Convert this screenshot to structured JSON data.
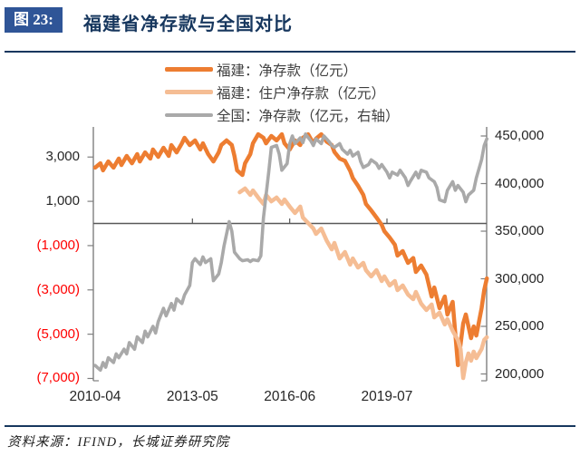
{
  "header": {
    "figure_label": "图 23:",
    "title": "福建省净存款与全国对比"
  },
  "legend": {
    "items": [
      {
        "label": "福建：净存款（亿元）"
      },
      {
        "label": "福建：住户净存款（亿元）"
      },
      {
        "label": "全国：净存款（亿元，右轴）"
      }
    ]
  },
  "source": {
    "text": "资料来源：IFIND，长城证券研究院"
  },
  "colors": {
    "navy": "#17375E",
    "figure_box_blue": "#2F5597",
    "fujian_net_orange": "#ED7D31",
    "fujian_household_peach": "#F5BD94",
    "national_gray": "#A9A9A9",
    "negative_label_red": "#FF0000",
    "tick_label": "#262626",
    "axis_line": "#7F7F7F",
    "zero_line": "#595959"
  },
  "chart_data": {
    "type": "line",
    "title": "福建省净存款与全国对比",
    "x_axis": {
      "unit": "months since 2010-04",
      "range": [
        0,
        149
      ],
      "ticks": [
        {
          "m": 0,
          "label": "2010-04"
        },
        {
          "m": 37,
          "label": "2013-05"
        },
        {
          "m": 74,
          "label": "2016-06"
        },
        {
          "m": 111,
          "label": "2019-07"
        }
      ]
    },
    "y_left": {
      "title": "福建净存款（亿元）",
      "range": [
        -7800,
        4400
      ],
      "ticks": [
        {
          "v": 3000,
          "label": "3,000",
          "color": "#262626"
        },
        {
          "v": 1000,
          "label": "1,000",
          "color": "#262626"
        },
        {
          "v": -1000,
          "label": "(1,000)",
          "color": "#FF0000"
        },
        {
          "v": -3000,
          "label": "(3,000)",
          "color": "#FF0000"
        },
        {
          "v": -5000,
          "label": "(5,000)",
          "color": "#FF0000"
        },
        {
          "v": -7000,
          "label": "(7,000)",
          "color": "#FF0000"
        }
      ]
    },
    "y_right": {
      "title": "全国净存款（亿元，右轴）",
      "range": [
        196000,
        455000
      ],
      "ticks": [
        {
          "v": 450000,
          "label": "450,000",
          "color": "#262626"
        },
        {
          "v": 400000,
          "label": "400,000",
          "color": "#262626"
        },
        {
          "v": 350000,
          "label": "350,000",
          "color": "#262626"
        },
        {
          "v": 300000,
          "label": "300,000",
          "color": "#262626"
        },
        {
          "v": 250000,
          "label": "250,000",
          "color": "#262626"
        },
        {
          "v": 200000,
          "label": "200,000",
          "color": "#262626"
        }
      ]
    },
    "series": [
      {
        "id": "fujian-net",
        "name": "福建：净存款（亿元）",
        "axis": "left",
        "color": "#ED7D31",
        "points": [
          [
            0,
            2520
          ],
          [
            2,
            2720
          ],
          [
            3,
            2400
          ],
          [
            5,
            2800
          ],
          [
            7,
            2520
          ],
          [
            9,
            2930
          ],
          [
            10,
            2640
          ],
          [
            12,
            3050
          ],
          [
            14,
            2720
          ],
          [
            16,
            3130
          ],
          [
            17,
            2800
          ],
          [
            19,
            3210
          ],
          [
            21,
            2930
          ],
          [
            22,
            3340
          ],
          [
            24,
            3010
          ],
          [
            26,
            3420
          ],
          [
            28,
            3050
          ],
          [
            29,
            3540
          ],
          [
            31,
            3210
          ],
          [
            33,
            3620
          ],
          [
            34,
            3870
          ],
          [
            36,
            3540
          ],
          [
            38,
            3750
          ],
          [
            40,
            3340
          ],
          [
            41,
            3620
          ],
          [
            43,
            3130
          ],
          [
            45,
            2800
          ],
          [
            47,
            3210
          ],
          [
            48,
            3540
          ],
          [
            50,
            3750
          ],
          [
            52,
            3540
          ],
          [
            53,
            3050
          ],
          [
            54,
            2400
          ],
          [
            56,
            2190
          ],
          [
            57,
            2720
          ],
          [
            59,
            3130
          ],
          [
            60,
            3620
          ],
          [
            62,
            4030
          ],
          [
            64,
            3870
          ],
          [
            65,
            3620
          ],
          [
            67,
            3950
          ],
          [
            69,
            3750
          ],
          [
            71,
            4030
          ],
          [
            72,
            3620
          ],
          [
            74,
            3340
          ],
          [
            76,
            3750
          ],
          [
            78,
            3540
          ],
          [
            79,
            3870
          ],
          [
            81,
            4030
          ],
          [
            83,
            3620
          ],
          [
            84,
            3830
          ],
          [
            86,
            4030
          ],
          [
            88,
            3700
          ],
          [
            90,
            3540
          ],
          [
            91,
            3230
          ],
          [
            93,
            2930
          ],
          [
            95,
            2830
          ],
          [
            97,
            2380
          ],
          [
            98,
            2050
          ],
          [
            100,
            1700
          ],
          [
            102,
            1290
          ],
          [
            103,
            880
          ],
          [
            105,
            590
          ],
          [
            107,
            270
          ],
          [
            109,
            -60
          ],
          [
            110,
            -350
          ],
          [
            112,
            -630
          ],
          [
            114,
            -960
          ],
          [
            115,
            -1450
          ],
          [
            117,
            -1250
          ],
          [
            119,
            -1780
          ],
          [
            121,
            -1560
          ],
          [
            122,
            -2190
          ],
          [
            124,
            -1900
          ],
          [
            126,
            -2310
          ],
          [
            128,
            -3300
          ],
          [
            129,
            -2890
          ],
          [
            131,
            -3830
          ],
          [
            133,
            -3300
          ],
          [
            134,
            -4110
          ],
          [
            136,
            -3540
          ],
          [
            138,
            -6400
          ],
          [
            140,
            -4520
          ],
          [
            141,
            -4110
          ],
          [
            143,
            -5180
          ],
          [
            144,
            -4650
          ],
          [
            145,
            -5060
          ],
          [
            147,
            -3830
          ],
          [
            148,
            -3010
          ],
          [
            149,
            -2480
          ]
        ]
      },
      {
        "id": "fujian-household",
        "name": "福建：住户净存款（亿元）",
        "axis": "left",
        "color": "#F5BD94",
        "points": [
          [
            55,
            1410
          ],
          [
            57,
            1580
          ],
          [
            59,
            1290
          ],
          [
            60,
            1490
          ],
          [
            62,
            1170
          ],
          [
            64,
            880
          ],
          [
            65,
            1290
          ],
          [
            67,
            1000
          ],
          [
            69,
            1170
          ],
          [
            71,
            880
          ],
          [
            72,
            1080
          ],
          [
            74,
            760
          ],
          [
            76,
            470
          ],
          [
            78,
            760
          ],
          [
            79,
            270
          ],
          [
            81,
            20
          ],
          [
            83,
            -230
          ],
          [
            84,
            -470
          ],
          [
            86,
            -230
          ],
          [
            88,
            -760
          ],
          [
            90,
            -1170
          ],
          [
            91,
            -880
          ],
          [
            93,
            -1580
          ],
          [
            95,
            -1290
          ],
          [
            97,
            -1860
          ],
          [
            98,
            -1580
          ],
          [
            100,
            -1990
          ],
          [
            102,
            -1780
          ],
          [
            103,
            -2110
          ],
          [
            105,
            -2390
          ],
          [
            107,
            -2110
          ],
          [
            109,
            -2600
          ],
          [
            110,
            -2390
          ],
          [
            112,
            -2800
          ],
          [
            114,
            -2600
          ],
          [
            115,
            -3010
          ],
          [
            117,
            -2800
          ],
          [
            119,
            -3210
          ],
          [
            121,
            -3420
          ],
          [
            122,
            -3090
          ],
          [
            124,
            -3620
          ],
          [
            126,
            -3910
          ],
          [
            128,
            -3660
          ],
          [
            129,
            -4240
          ],
          [
            131,
            -4030
          ],
          [
            133,
            -4560
          ],
          [
            134,
            -4320
          ],
          [
            136,
            -4850
          ],
          [
            138,
            -5260
          ],
          [
            139,
            -5670
          ],
          [
            140,
            -6980
          ],
          [
            141,
            -6280
          ],
          [
            142,
            -5870
          ],
          [
            143,
            -6200
          ],
          [
            144,
            -5790
          ],
          [
            145,
            -6080
          ],
          [
            147,
            -5670
          ],
          [
            148,
            -5260
          ],
          [
            149,
            -5140
          ]
        ]
      },
      {
        "id": "national",
        "name": "全国：净存款（亿元，右轴）",
        "axis": "right",
        "color": "#A9A9A9",
        "points": [
          [
            0,
            209000
          ],
          [
            2,
            204000
          ],
          [
            3,
            212000
          ],
          [
            4,
            207000
          ],
          [
            5,
            217000
          ],
          [
            7,
            212000
          ],
          [
            8,
            221000
          ],
          [
            9,
            217000
          ],
          [
            11,
            226000
          ],
          [
            12,
            221000
          ],
          [
            13,
            233000
          ],
          [
            15,
            226000
          ],
          [
            16,
            239000
          ],
          [
            18,
            233000
          ],
          [
            19,
            245000
          ],
          [
            20,
            239000
          ],
          [
            22,
            250000
          ],
          [
            23,
            243000
          ],
          [
            24,
            255000
          ],
          [
            26,
            269000
          ],
          [
            27,
            261000
          ],
          [
            29,
            274000
          ],
          [
            30,
            267000
          ],
          [
            31,
            279000
          ],
          [
            33,
            274000
          ],
          [
            34,
            283000
          ],
          [
            36,
            293000
          ],
          [
            37,
            317000
          ],
          [
            38,
            321000
          ],
          [
            40,
            315000
          ],
          [
            41,
            323000
          ],
          [
            42,
            317000
          ],
          [
            44,
            321000
          ],
          [
            45,
            298000
          ],
          [
            47,
            305000
          ],
          [
            48,
            317000
          ],
          [
            49,
            334000
          ],
          [
            51,
            360000
          ],
          [
            52,
            350000
          ],
          [
            53,
            328000
          ],
          [
            55,
            321000
          ],
          [
            56,
            319000
          ],
          [
            58,
            320000
          ],
          [
            59,
            318000
          ],
          [
            60,
            320000
          ],
          [
            62,
            319000
          ],
          [
            63,
            324000
          ],
          [
            64,
            364000
          ],
          [
            66,
            412000
          ],
          [
            67,
            438000
          ],
          [
            69,
            440000
          ],
          [
            70,
            431000
          ],
          [
            71,
            414000
          ],
          [
            73,
            421000
          ],
          [
            74,
            442000
          ],
          [
            75,
            450000
          ],
          [
            76,
            442000
          ],
          [
            78,
            448000
          ],
          [
            79,
            443000
          ],
          [
            80,
            452000
          ],
          [
            82,
            445000
          ],
          [
            83,
            440000
          ],
          [
            84,
            447000
          ],
          [
            86,
            442000
          ],
          [
            87,
            450000
          ],
          [
            89,
            444000
          ],
          [
            90,
            440000
          ],
          [
            91,
            438000
          ],
          [
            93,
            442000
          ],
          [
            94,
            436000
          ],
          [
            96,
            431000
          ],
          [
            97,
            435000
          ],
          [
            98,
            429000
          ],
          [
            100,
            433000
          ],
          [
            101,
            423000
          ],
          [
            102,
            417000
          ],
          [
            104,
            420000
          ],
          [
            105,
            425000
          ],
          [
            107,
            421000
          ],
          [
            108,
            416000
          ],
          [
            109,
            420000
          ],
          [
            111,
            412000
          ],
          [
            112,
            406000
          ],
          [
            113,
            412000
          ],
          [
            115,
            409000
          ],
          [
            116,
            414000
          ],
          [
            118,
            406000
          ],
          [
            119,
            398000
          ],
          [
            120,
            403000
          ],
          [
            122,
            412000
          ],
          [
            123,
            406000
          ],
          [
            124,
            414000
          ],
          [
            126,
            412000
          ],
          [
            127,
            406000
          ],
          [
            129,
            402000
          ],
          [
            130,
            396000
          ],
          [
            131,
            383000
          ],
          [
            133,
            381000
          ],
          [
            134,
            393000
          ],
          [
            136,
            402000
          ],
          [
            137,
            393000
          ],
          [
            138,
            398000
          ],
          [
            140,
            391000
          ],
          [
            141,
            381000
          ],
          [
            142,
            388000
          ],
          [
            144,
            393000
          ],
          [
            145,
            406000
          ],
          [
            147,
            425000
          ],
          [
            148,
            440000
          ],
          [
            149,
            447000
          ]
        ]
      }
    ]
  }
}
